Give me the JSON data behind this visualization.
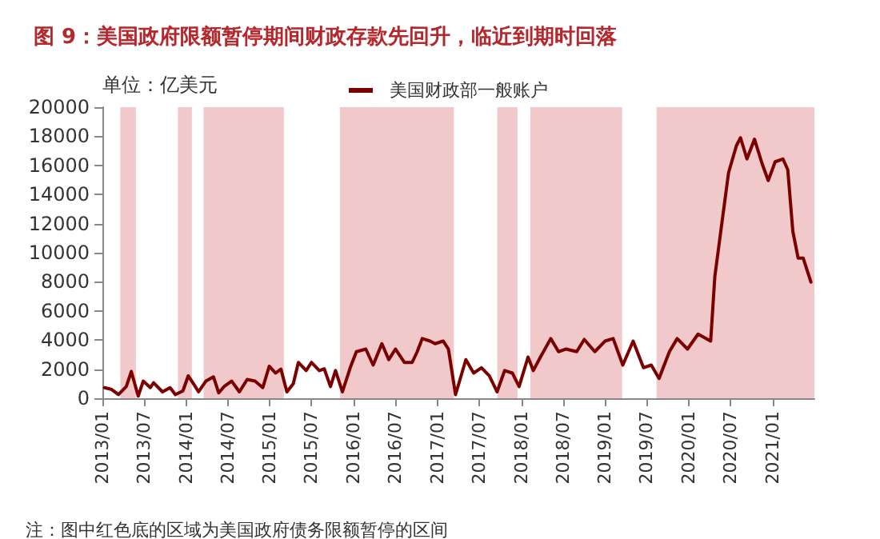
{
  "chart_data": {
    "type": "line",
    "title": "图 9：美国政府限额暂停期间财政存款先回升，临近到期时回落",
    "ylabel": "单位：亿美元",
    "annotations": [
      "注：图中红色底的区域为美国政府债务限额暂停的区间"
    ],
    "x": [
      "2013-01-10",
      "2013-02-08",
      "2013-03-12",
      "2013-04-15",
      "2013-05-07",
      "2013-06-06",
      "2013-06-28",
      "2013-07-29",
      "2013-08-12",
      "2013-09-20",
      "2013-10-23",
      "2013-11-15",
      "2013-12-18",
      "2014-01-10",
      "2014-02-02",
      "2014-02-24",
      "2014-03-28",
      "2014-04-30",
      "2014-05-23",
      "2014-06-15",
      "2014-07-18",
      "2014-08-21",
      "2014-09-24",
      "2014-10-28",
      "2014-12-01",
      "2014-12-29",
      "2015-01-26",
      "2015-02-18",
      "2015-03-16",
      "2015-04-13",
      "2015-05-05",
      "2015-06-08",
      "2015-07-01",
      "2015-08-04",
      "2015-08-26",
      "2015-09-22",
      "2015-10-14",
      "2015-11-13",
      "2015-12-17",
      "2016-01-13",
      "2016-02-23",
      "2016-03-26",
      "2016-05-03",
      "2016-06-02",
      "2016-07-01",
      "2016-08-09",
      "2016-09-12",
      "2016-10-04",
      "2016-10-26",
      "2016-11-29",
      "2016-12-21",
      "2017-01-25",
      "2017-02-17",
      "2017-03-20",
      "2017-05-04",
      "2017-06-07",
      "2017-07-11",
      "2017-08-14",
      "2017-09-17",
      "2017-10-20",
      "2017-11-23",
      "2017-12-22",
      "2018-01-30",
      "2018-02-22",
      "2018-03-25",
      "2018-05-09",
      "2018-06-12",
      "2018-07-15",
      "2018-08-30",
      "2018-10-02",
      "2018-11-17",
      "2019-01-01",
      "2019-02-05",
      "2019-03-19",
      "2019-05-03",
      "2019-06-17",
      "2019-07-21",
      "2019-08-24",
      "2019-10-08",
      "2019-11-11",
      "2019-12-26",
      "2020-02-10",
      "2020-04-05",
      "2020-04-23",
      "2020-05-19",
      "2020-06-22",
      "2020-07-26",
      "2020-08-13",
      "2020-09-10",
      "2020-10-13",
      "2020-11-16",
      "2020-12-12",
      "2021-01-11",
      "2021-02-14",
      "2021-03-07",
      "2021-03-29",
      "2021-04-21",
      "2021-05-13",
      "2021-06-16"
    ],
    "series": [
      {
        "name": "美国财政部一般账户",
        "color": "#7b0000",
        "values": [
          730,
          620,
          250,
          800,
          1840,
          150,
          1180,
          730,
          1070,
          440,
          730,
          250,
          510,
          1540,
          1000,
          440,
          1180,
          1470,
          370,
          800,
          1180,
          440,
          1290,
          1180,
          730,
          2200,
          1730,
          2000,
          440,
          1000,
          2460,
          1900,
          2460,
          1900,
          2020,
          800,
          1900,
          440,
          2100,
          3200,
          3380,
          2280,
          3750,
          2650,
          3380,
          2460,
          2460,
          3200,
          4100,
          3930,
          3750,
          3930,
          3380,
          250,
          2650,
          1730,
          2100,
          1540,
          440,
          1900,
          1730,
          800,
          2830,
          1900,
          2830,
          4100,
          3200,
          3380,
          3200,
          4040,
          3200,
          3930,
          4100,
          2280,
          3930,
          2100,
          2280,
          1360,
          3200,
          4100,
          3380,
          4410,
          3930,
          8350,
          11470,
          15510,
          17350,
          17900,
          16440,
          17800,
          16070,
          14960,
          16250,
          16440,
          15700,
          11470,
          9630,
          9630,
          7980
        ]
      }
    ],
    "xlim": [
      "2013-01-01",
      "2021-07-01"
    ],
    "xticks": [
      {
        "value": "2013-01",
        "label": "2013/01"
      },
      {
        "value": "2013-07",
        "label": "2013/07"
      },
      {
        "value": "2014-01",
        "label": "2014/01"
      },
      {
        "value": "2014-07",
        "label": "2014/07"
      },
      {
        "value": "2015-01",
        "label": "2015/01"
      },
      {
        "value": "2015-07",
        "label": "2015/07"
      },
      {
        "value": "2016-01",
        "label": "2016/01"
      },
      {
        "value": "2016-07",
        "label": "2016/07"
      },
      {
        "value": "2017-01",
        "label": "2017/01"
      },
      {
        "value": "2017-07",
        "label": "2017/07"
      },
      {
        "value": "2018-01",
        "label": "2018/01"
      },
      {
        "value": "2018-07",
        "label": "2018/07"
      },
      {
        "value": "2019-01",
        "label": "2019/01"
      },
      {
        "value": "2019-07",
        "label": "2019/07"
      },
      {
        "value": "2020-01",
        "label": "2020/01"
      },
      {
        "value": "2020-07",
        "label": "2020/07"
      },
      {
        "value": "2021-01",
        "label": "2021/01"
      }
    ],
    "ylim": [
      0,
      20000
    ],
    "yticks": [
      0,
      2000,
      4000,
      6000,
      8000,
      10000,
      12000,
      14000,
      16000,
      18000,
      20000
    ],
    "bands": [
      {
        "axis": "x",
        "from": "2013-03-20",
        "to": "2013-05-27",
        "color": "#f2c9cb"
      },
      {
        "axis": "x",
        "from": "2013-11-26",
        "to": "2014-01-26",
        "color": "#f2c9cb"
      },
      {
        "axis": "x",
        "from": "2014-03-18",
        "to": "2015-03-03",
        "color": "#f2c9cb"
      },
      {
        "axis": "x",
        "from": "2015-11-02",
        "to": "2017-03-13",
        "color": "#f2c9cb"
      },
      {
        "axis": "x",
        "from": "2017-09-18",
        "to": "2017-12-15",
        "color": "#f2c9cb"
      },
      {
        "axis": "x",
        "from": "2018-02-09",
        "to": "2019-03-16",
        "color": "#f2c9cb"
      },
      {
        "axis": "x",
        "from": "2019-08-13",
        "to": "2021-07-01",
        "color": "#f2c9cb"
      }
    ],
    "grid": false,
    "legend": "top",
    "marker": "none",
    "line_style": "solid"
  }
}
